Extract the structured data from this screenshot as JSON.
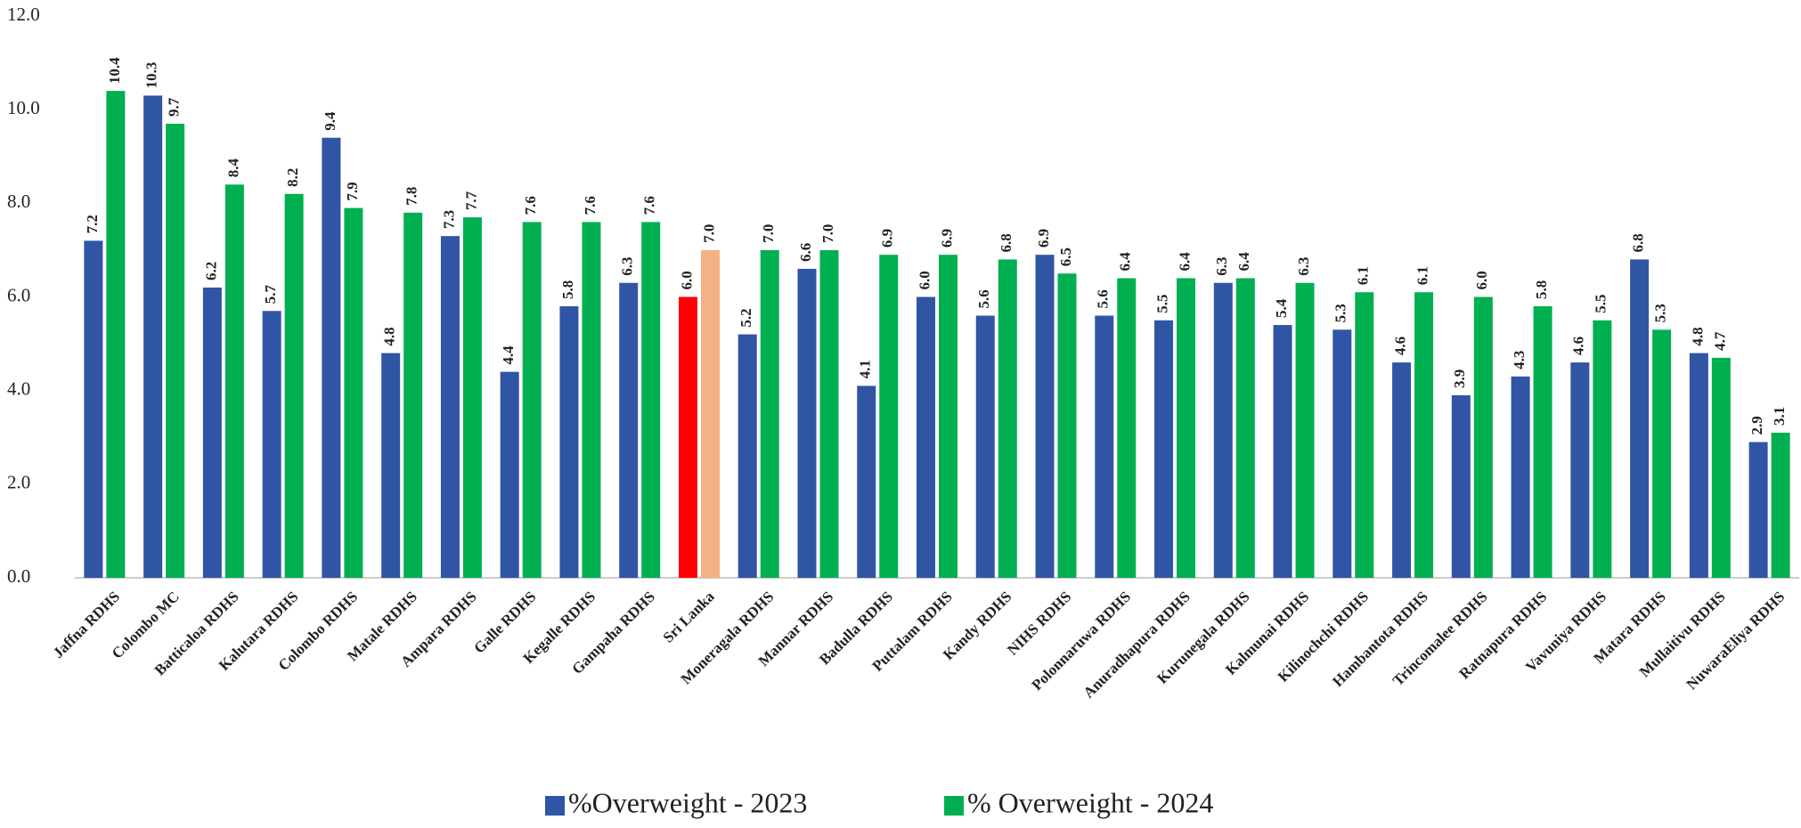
{
  "chart_data": {
    "type": "bar",
    "categories": [
      "Jaffna RDHS",
      "Colombo MC",
      "Batticaloa RDHS",
      "Kalutara RDHS",
      "Colombo RDHS",
      "Matale RDHS",
      "Ampara RDHS",
      "Galle RDHS",
      "Kegalle RDHS",
      "Gampaha RDHS",
      "Sri Lanka",
      "Moneragala RDHS",
      "Mannar RDHS",
      "Badulla RDHS",
      "Puttalam RDHS",
      "Kandy RDHS",
      "NIHS RDHS",
      "Polonnaruwa RDHS",
      "Anuradhapura RDHS",
      "Kurunegala RDHS",
      "Kalmunai RDHS",
      "Kilinochchi RDHS",
      "Hambantota RDHS",
      "Trincomalee RDHS",
      "Ratnapura RDHS",
      "Vavuniya RDHS",
      "Matara RDHS",
      "Mullaitivu RDHS",
      "NuwaraEliya RDHS"
    ],
    "series": [
      {
        "name": "%Overweight - 2023",
        "color": "#2f55a4",
        "colors": [
          "#2f55a4",
          "#2f55a4",
          "#2f55a4",
          "#2f55a4",
          "#2f55a4",
          "#2f55a4",
          "#2f55a4",
          "#2f55a4",
          "#2f55a4",
          "#2f55a4",
          "#ff0000",
          "#2f55a4",
          "#2f55a4",
          "#2f55a4",
          "#2f55a4",
          "#2f55a4",
          "#2f55a4",
          "#2f55a4",
          "#2f55a4",
          "#2f55a4",
          "#2f55a4",
          "#2f55a4",
          "#2f55a4",
          "#2f55a4",
          "#2f55a4",
          "#2f55a4",
          "#2f55a4",
          "#2f55a4",
          "#2f55a4"
        ],
        "values": [
          7.2,
          10.3,
          6.2,
          5.7,
          9.4,
          4.8,
          7.3,
          4.4,
          5.8,
          6.3,
          6.0,
          5.2,
          6.6,
          4.1,
          6.0,
          5.6,
          6.9,
          5.6,
          5.5,
          6.3,
          5.4,
          5.3,
          4.6,
          3.9,
          4.3,
          4.6,
          6.8,
          4.8,
          2.9
        ],
        "value_labels": [
          "7.2",
          "10.3",
          "6.2",
          "5.7",
          "9.4",
          "4.8",
          "7.3",
          "4.4",
          "5.8",
          "6.3",
          "6.0",
          "5.2",
          "6.6",
          "4.1",
          "6.0",
          "5.6",
          "6.9",
          "5.6",
          "5.5",
          "6.3",
          "5.4",
          "5.3",
          "4.6",
          "3.9",
          "4.3",
          "4.6",
          "6.8",
          "4.8",
          "2.9"
        ]
      },
      {
        "name": "% Overweight - 2024",
        "color": "#00b050",
        "colors": [
          "#00b050",
          "#00b050",
          "#00b050",
          "#00b050",
          "#00b050",
          "#00b050",
          "#00b050",
          "#00b050",
          "#00b050",
          "#00b050",
          "#f4b183",
          "#00b050",
          "#00b050",
          "#00b050",
          "#00b050",
          "#00b050",
          "#00b050",
          "#00b050",
          "#00b050",
          "#00b050",
          "#00b050",
          "#00b050",
          "#00b050",
          "#00b050",
          "#00b050",
          "#00b050",
          "#00b050",
          "#00b050",
          "#00b050"
        ],
        "values": [
          10.4,
          9.7,
          8.4,
          8.2,
          7.9,
          7.8,
          7.7,
          7.6,
          7.6,
          7.6,
          7.0,
          7.0,
          7.0,
          6.9,
          6.9,
          6.8,
          6.5,
          6.4,
          6.4,
          6.4,
          6.3,
          6.1,
          6.1,
          6.0,
          5.8,
          5.5,
          5.3,
          4.7,
          3.1
        ],
        "value_labels": [
          "10.4",
          "9.7",
          "8.4",
          "8.2",
          "7.9",
          "7.8",
          "7.7",
          "7.6",
          "7.6",
          "7.6",
          "7.0",
          "7.0",
          "7.0",
          "6.9",
          "6.9",
          "6.8",
          "6.5",
          "6.4",
          "6.4",
          "6.4",
          "6.3",
          "6.1",
          "6.1",
          "6.0",
          "5.8",
          "5.5",
          "5.3",
          "4.7",
          "3.1"
        ]
      }
    ],
    "ylim": [
      0,
      12
    ],
    "yticks": [
      {
        "value": 0,
        "label": "0.0"
      },
      {
        "value": 2,
        "label": "2.0"
      },
      {
        "value": 4,
        "label": "4.0"
      },
      {
        "value": 6,
        "label": "6.0"
      },
      {
        "value": 8,
        "label": "8.0"
      },
      {
        "value": 10,
        "label": "10.0"
      },
      {
        "value": 12,
        "label": "12.0"
      }
    ],
    "grid": false,
    "legend": "bottom"
  }
}
